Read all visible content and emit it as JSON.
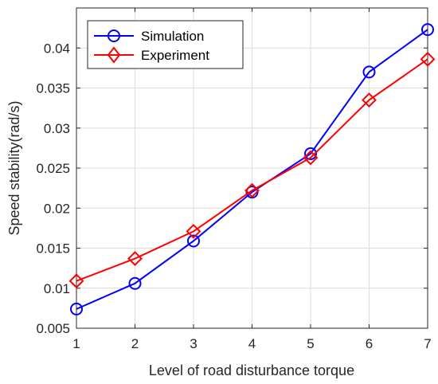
{
  "chart_data": {
    "type": "line",
    "xlabel": "Level of road disturbance torque",
    "ylabel": "Speed stability(rad/s)",
    "xlim": [
      1,
      7
    ],
    "ylim": [
      0.005,
      0.045
    ],
    "x_ticks": [
      "1",
      "2",
      "3",
      "4",
      "5",
      "6",
      "7"
    ],
    "y_ticks": [
      "0.005",
      "0.01",
      "0.015",
      "0.02",
      "0.025",
      "0.03",
      "0.035",
      "0.04"
    ],
    "grid": true,
    "legend_position": "top-left",
    "x": [
      1,
      2,
      3,
      4,
      5,
      6,
      7
    ],
    "series": [
      {
        "name": "Simulation",
        "color": "#0000ff",
        "marker": "circle",
        "values": [
          0.0074,
          0.0106,
          0.0159,
          0.022,
          0.0268,
          0.037,
          0.0423
        ]
      },
      {
        "name": "Experiment",
        "color": "#ff0000",
        "marker": "diamond",
        "values": [
          0.0109,
          0.0137,
          0.0171,
          0.0222,
          0.0263,
          0.0335,
          0.0386
        ]
      }
    ]
  }
}
